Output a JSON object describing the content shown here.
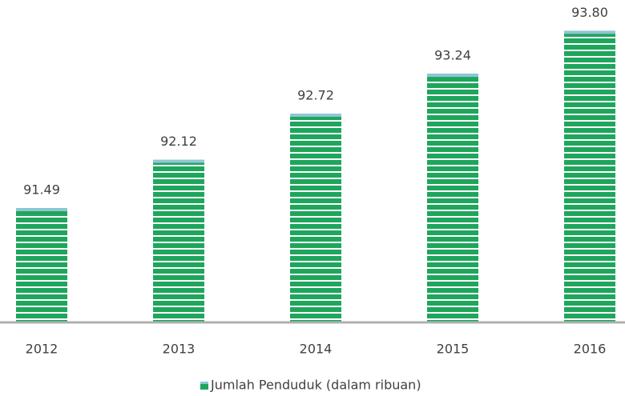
{
  "chart_data": {
    "type": "bar",
    "categories": [
      "2012",
      "2013",
      "2014",
      "2015",
      "2016"
    ],
    "series": [
      {
        "name": "Jumlah Penduduk (dalam ribuan)",
        "color": "#1ea65c",
        "values": [
          91.49,
          92.12,
          92.72,
          93.24,
          93.8
        ],
        "value_labels": [
          "91.49",
          "92.12",
          "92.72",
          "93.24",
          "93.80"
        ]
      }
    ],
    "ylim": [
      90,
      94.2
    ],
    "grid": false,
    "legend": "bottom"
  }
}
